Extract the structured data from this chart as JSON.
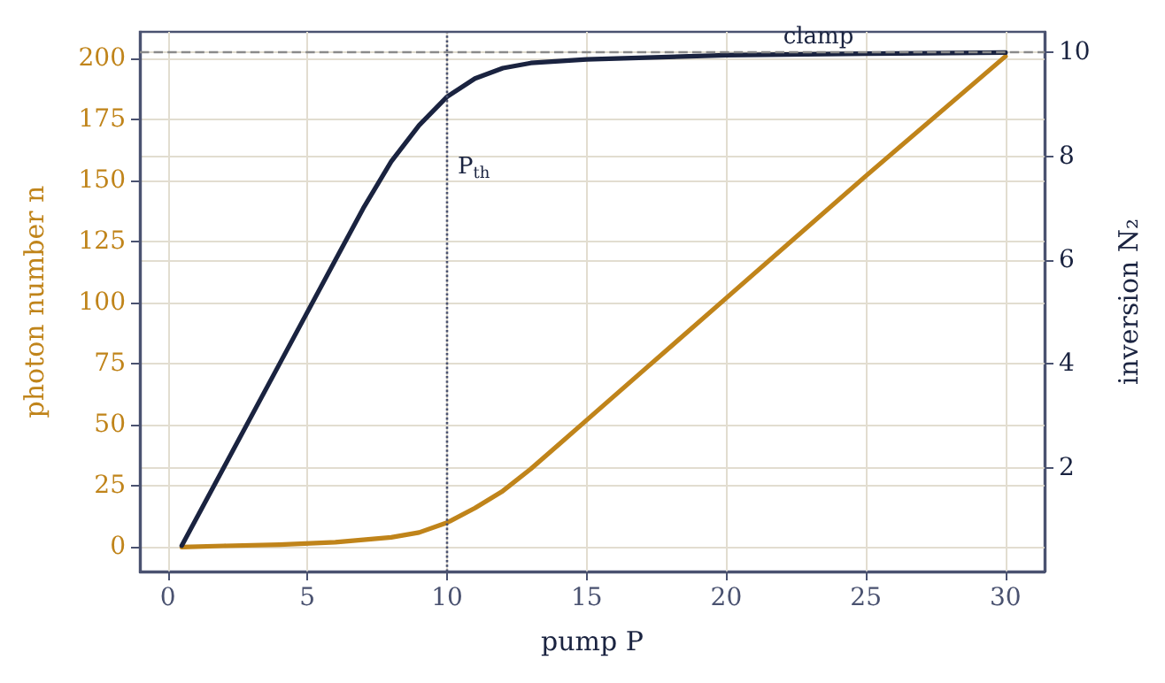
{
  "chart_data": {
    "type": "line",
    "xlabel": "pump P",
    "ylabel": "photon number n",
    "y2label": "inversion N₂",
    "xlim": [
      -1,
      31.4
    ],
    "xticks": [
      0,
      5,
      10,
      15,
      20,
      25,
      30
    ],
    "ylim": [
      -10,
      211
    ],
    "yticks": [
      0,
      25,
      50,
      75,
      100,
      125,
      150,
      175,
      200
    ],
    "y2lim": [
      0,
      10.4
    ],
    "y2ticks": [
      2,
      4,
      6,
      8,
      10
    ],
    "grid": true,
    "marker": "none",
    "line_style": "solid",
    "series": [
      {
        "color": "#c0841a",
        "x": [
          0.5,
          2,
          4,
          6,
          8,
          9,
          10,
          11,
          12,
          13,
          14,
          15,
          17,
          20,
          25,
          30
        ],
        "values": [
          0,
          0.5,
          1,
          2,
          4,
          6,
          10,
          16,
          23,
          32,
          42,
          52,
          72,
          102,
          152,
          201
        ]
      },
      {
        "color": "#1a2340",
        "axis": "y2",
        "x": [
          0.5,
          2,
          4,
          6,
          7,
          8,
          9,
          10,
          11,
          12,
          13,
          15,
          20,
          25,
          30
        ],
        "values": [
          0.5,
          2,
          4,
          6,
          7,
          7.9,
          8.6,
          9.15,
          9.5,
          9.7,
          9.8,
          9.87,
          9.95,
          9.98,
          10
        ]
      }
    ],
    "ref_lines": [
      {
        "axis": "x",
        "value": 10,
        "label": "P$_{th}$",
        "color": "#4a5270",
        "line_style": "dotted"
      },
      {
        "axis": "y2",
        "value": 10,
        "label": "clamp",
        "color": "#8a8a8a",
        "line_style": "dashed"
      }
    ]
  }
}
